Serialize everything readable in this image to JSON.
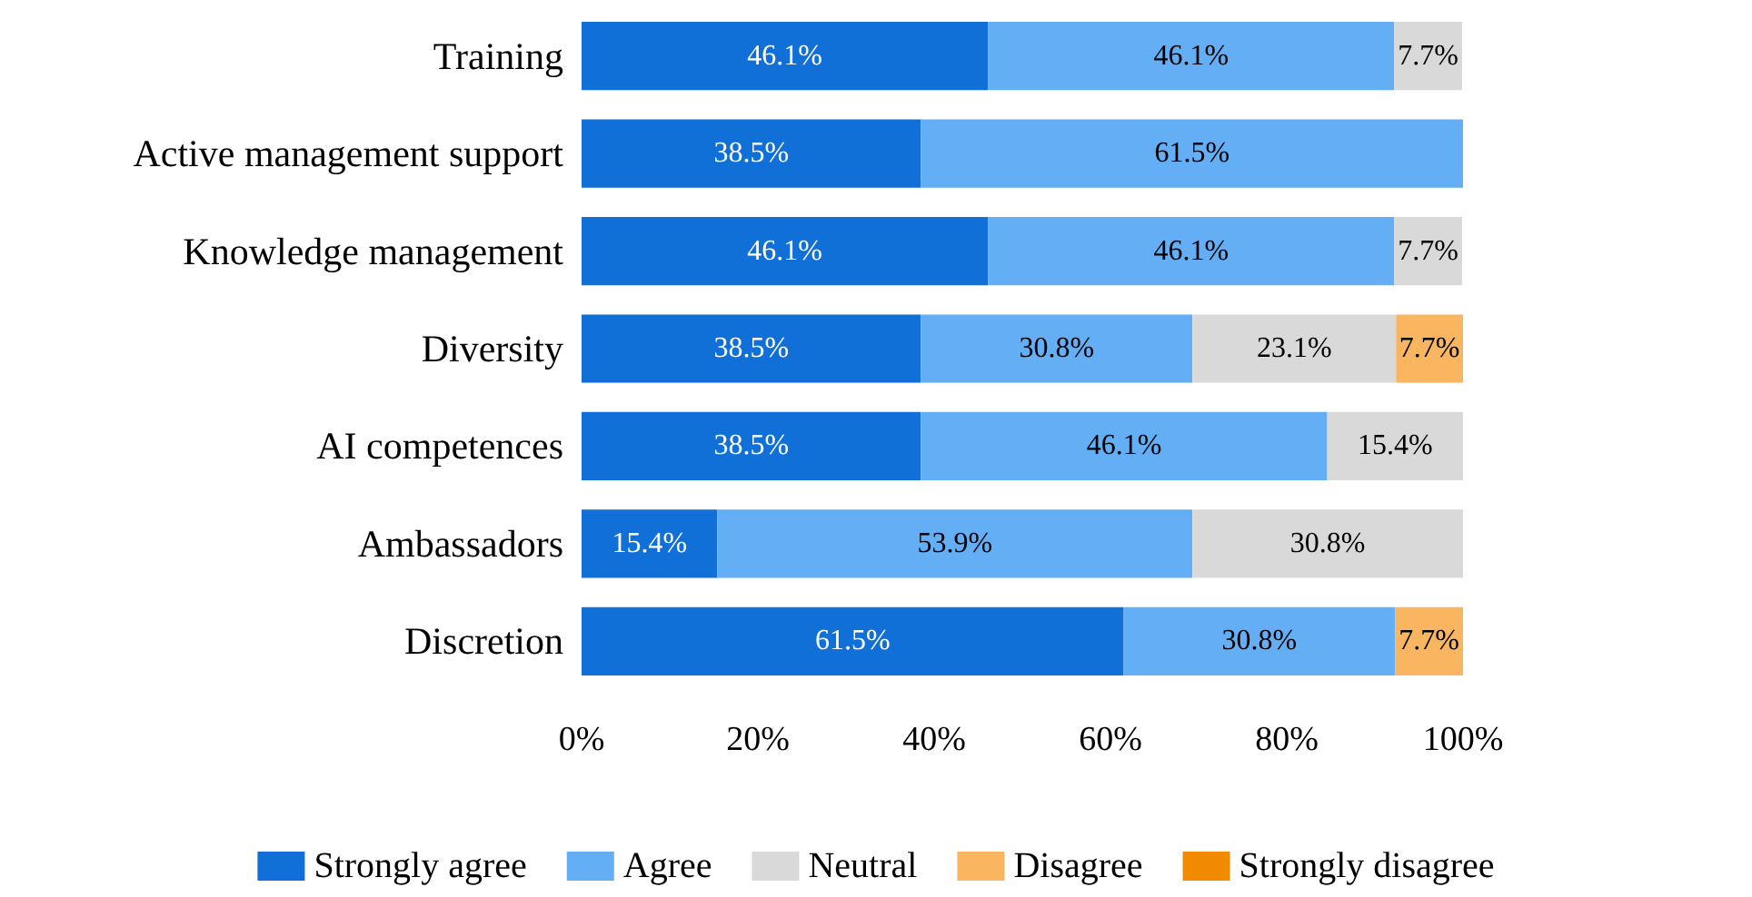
{
  "chart_data": {
    "type": "bar",
    "orientation": "horizontal",
    "stacked": true,
    "categories": [
      "Training",
      "Active management support",
      "Knowledge management",
      "Diversity",
      "AI competences",
      "Ambassadors",
      "Discretion"
    ],
    "series": [
      {
        "name": "Strongly agree",
        "color": "#1170d8",
        "values": [
          46.1,
          38.5,
          46.1,
          38.5,
          38.5,
          15.4,
          61.5
        ],
        "value_labels": [
          "46.1%",
          "38.5%",
          "46.1%",
          "38.5%",
          "38.5%",
          "15.4%",
          "61.5%"
        ]
      },
      {
        "name": "Agree",
        "color": "#63aef5",
        "values": [
          46.1,
          61.5,
          46.1,
          30.8,
          46.1,
          53.9,
          30.8
        ],
        "value_labels": [
          "46.1%",
          "61.5%",
          "46.1%",
          "30.8%",
          "46.1%",
          "53.9%",
          "30.8%"
        ]
      },
      {
        "name": "Neutral",
        "color": "#d9d9d9",
        "values": [
          7.7,
          null,
          7.7,
          23.1,
          15.4,
          30.8,
          null
        ],
        "value_labels": [
          "7.7%",
          null,
          "7.7%",
          "23.1%",
          "15.4%",
          "30.8%",
          null
        ]
      },
      {
        "name": "Disagree",
        "color": "#f9b560",
        "values": [
          null,
          null,
          null,
          7.7,
          null,
          null,
          7.7
        ],
        "value_labels": [
          null,
          null,
          null,
          "7.7%",
          null,
          null,
          "7.7%"
        ]
      },
      {
        "name": "Strongly disagree",
        "color": "#f28a00",
        "values": [
          null,
          null,
          null,
          null,
          null,
          null,
          null
        ],
        "value_labels": [
          null,
          null,
          null,
          null,
          null,
          null,
          null
        ]
      }
    ],
    "xlim": [
      0,
      100
    ],
    "xticks": [
      {
        "value": 0,
        "label": "0%"
      },
      {
        "value": 20,
        "label": "20%"
      },
      {
        "value": 40,
        "label": "40%"
      },
      {
        "value": 60,
        "label": "60%"
      },
      {
        "value": 80,
        "label": "80%"
      },
      {
        "value": 100,
        "label": "100%"
      }
    ],
    "grid": false,
    "legend": "bottom"
  }
}
